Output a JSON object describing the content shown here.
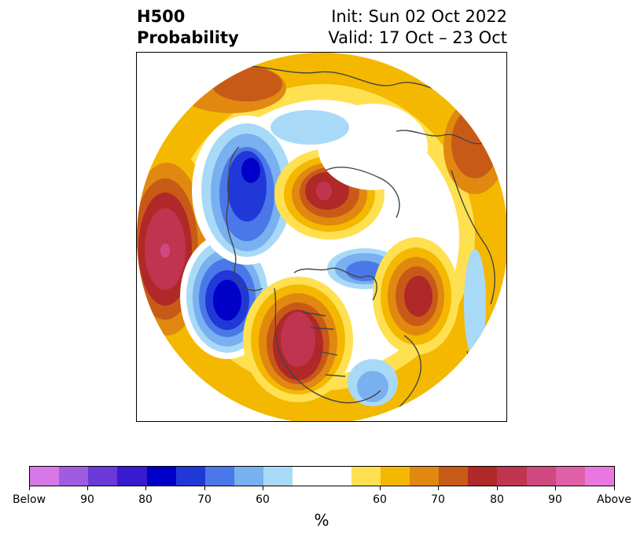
{
  "header": {
    "title_line1": "H500",
    "title_line2": "Probability",
    "init_text": "Init: Sun 02 Oct 2022",
    "valid_text": "Valid: 17 Oct – 23 Oct"
  },
  "colorbar": {
    "unit": "%",
    "segments": [
      "#d878e8",
      "#a05ce0",
      "#6a3ad8",
      "#3a1ad0",
      "#0000c8",
      "#2038d8",
      "#4a78e8",
      "#78b0f0",
      "#a8daf8",
      "#ffffff",
      "#ffe050",
      "#f4b800",
      "#e08810",
      "#c85a18",
      "#b02828",
      "#c03450",
      "#d04880",
      "#e060a8",
      "#e878e0"
    ],
    "tick_labels": [
      "Below",
      "90",
      "80",
      "70",
      "60",
      "60",
      "70",
      "80",
      "90",
      "Above"
    ]
  },
  "map": {
    "features": [
      {
        "name": "anomaly-above-north-pacific",
        "category": "above",
        "peak_percent": 90
      },
      {
        "name": "anomaly-above-western-north-america",
        "category": "above",
        "peak_percent": 90
      },
      {
        "name": "anomaly-above-siberia",
        "category": "above",
        "peak_percent": 90
      },
      {
        "name": "anomaly-above-north-atlantic",
        "category": "above",
        "peak_percent": 80
      },
      {
        "name": "anomaly-above-eastern-europe",
        "category": "above",
        "peak_percent": 70
      },
      {
        "name": "anomaly-below-gulf-of-alaska",
        "category": "below",
        "peak_percent": 80
      },
      {
        "name": "anomaly-below-east-asia",
        "category": "below",
        "peak_percent": 80
      },
      {
        "name": "anomaly-below-arctic-canada",
        "category": "below",
        "peak_percent": 70
      },
      {
        "name": "anomaly-below-western-atlantic",
        "category": "below",
        "peak_percent": 60
      }
    ]
  }
}
